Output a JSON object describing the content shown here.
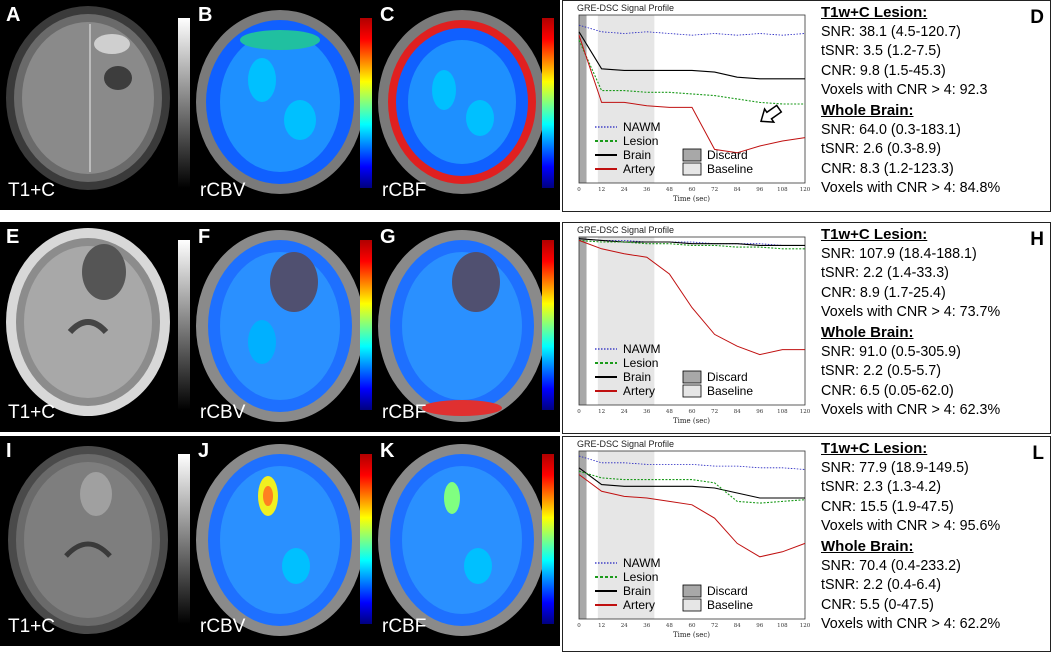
{
  "rows": [
    {
      "panels": [
        {
          "letter": "A",
          "caption": "T1+C"
        },
        {
          "letter": "B",
          "caption": "rCBV"
        },
        {
          "letter": "C",
          "caption": "rCBF"
        }
      ],
      "right_letter": "D",
      "chart_data": {
        "type": "line",
        "title": "GRE-DSC Signal Profile",
        "xlabel": "Time (sec)",
        "x_ticks": [
          "0",
          "12",
          "24",
          "36",
          "48",
          "60",
          "72",
          "84",
          "96",
          "108",
          "120"
        ],
        "xlim": [
          0,
          120
        ],
        "ylim": [
          0,
          1
        ],
        "legend": {
          "nawm": "NAWM",
          "lesion": "Lesion",
          "brain": "Brain",
          "artery": "Artery",
          "discard": "Discard",
          "baseline": "Baseline"
        },
        "colors": {
          "nawm": "#2020c0",
          "lesion": "#1a9a1a",
          "brain": "#000000",
          "artery": "#c01010"
        },
        "series": [
          {
            "name": "NAWM",
            "values": [
              0.94,
              0.9,
              0.89,
              0.9,
              0.89,
              0.88,
              0.89,
              0.88,
              0.89,
              0.88,
              0.89
            ]
          },
          {
            "name": "Brain",
            "values": [
              0.9,
              0.68,
              0.67,
              0.67,
              0.67,
              0.67,
              0.66,
              0.63,
              0.62,
              0.62,
              0.62
            ]
          },
          {
            "name": "Lesion",
            "values": [
              0.85,
              0.55,
              0.55,
              0.54,
              0.54,
              0.53,
              0.52,
              0.5,
              0.48,
              0.47,
              0.47
            ]
          },
          {
            "name": "Artery",
            "values": [
              0.88,
              0.48,
              0.48,
              0.46,
              0.45,
              0.45,
              0.2,
              0.18,
              0.22,
              0.25,
              0.27
            ]
          }
        ]
      },
      "stats": {
        "lesion_head": "T1w+C Lesion:",
        "lesion": [
          "SNR: 38.1 (4.5-120.7)",
          "tSNR: 3.5 (1.2-7.5)",
          "CNR: 9.8 (1.5-45.3)",
          "Voxels with CNR > 4: 92.3"
        ],
        "brain_head": "Whole Brain:",
        "brain": [
          "SNR: 64.0 (0.3-183.1)",
          "tSNR: 2.6 (0.3-8.9)",
          "CNR: 8.3 (1.2-123.3)",
          "Voxels with CNR > 4: 84.8%"
        ]
      }
    },
    {
      "panels": [
        {
          "letter": "E",
          "caption": "T1+C"
        },
        {
          "letter": "F",
          "caption": "rCBV"
        },
        {
          "letter": "G",
          "caption": "rCBF"
        }
      ],
      "right_letter": "H",
      "chart_data": {
        "type": "line",
        "title": "GRE-DSC Signal Profile",
        "xlabel": "Time (sec)",
        "x_ticks": [
          "0",
          "12",
          "24",
          "36",
          "48",
          "60",
          "72",
          "84",
          "96",
          "108",
          "120"
        ],
        "xlim": [
          0,
          120
        ],
        "ylim": [
          0,
          1
        ],
        "legend": {
          "nawm": "NAWM",
          "lesion": "Lesion",
          "brain": "Brain",
          "artery": "Artery",
          "discard": "Discard",
          "baseline": "Baseline"
        },
        "colors": {
          "nawm": "#2020c0",
          "lesion": "#1a9a1a",
          "brain": "#000000",
          "artery": "#c01010"
        },
        "series": [
          {
            "name": "NAWM",
            "values": [
              0.99,
              0.98,
              0.98,
              0.97,
              0.97,
              0.97,
              0.96,
              0.96,
              0.96,
              0.95,
              0.95
            ]
          },
          {
            "name": "Brain",
            "values": [
              0.99,
              0.98,
              0.97,
              0.97,
              0.97,
              0.96,
              0.96,
              0.96,
              0.95,
              0.95,
              0.95
            ]
          },
          {
            "name": "Lesion",
            "values": [
              0.98,
              0.97,
              0.97,
              0.96,
              0.96,
              0.95,
              0.95,
              0.94,
              0.94,
              0.93,
              0.93
            ]
          },
          {
            "name": "Artery",
            "values": [
              0.98,
              0.93,
              0.9,
              0.88,
              0.78,
              0.58,
              0.42,
              0.35,
              0.3,
              0.33,
              0.33
            ]
          }
        ]
      },
      "stats": {
        "lesion_head": "T1w+C Lesion:",
        "lesion": [
          "SNR: 107.9 (18.4-188.1)",
          "tSNR: 2.2 (1.4-33.3)",
          "CNR: 8.9 (1.7-25.4)",
          "Voxels with CNR > 4: 73.7%"
        ],
        "brain_head": "Whole Brain:",
        "brain": [
          "SNR: 91.0 (0.5-305.9)",
          "tSNR: 2.2 (0.5-5.7)",
          "CNR: 6.5 (0.05-62.0)",
          "Voxels with CNR > 4: 62.3%"
        ]
      }
    },
    {
      "panels": [
        {
          "letter": "I",
          "caption": "T1+C"
        },
        {
          "letter": "J",
          "caption": "rCBV"
        },
        {
          "letter": "K",
          "caption": "rCBF"
        }
      ],
      "right_letter": "L",
      "chart_data": {
        "type": "line",
        "title": "GRE-DSC Signal Profile",
        "xlabel": "Time (sec)",
        "x_ticks": [
          "0",
          "12",
          "24",
          "36",
          "48",
          "60",
          "72",
          "84",
          "96",
          "108",
          "120"
        ],
        "xlim": [
          0,
          120
        ],
        "ylim": [
          0,
          1
        ],
        "legend": {
          "nawm": "NAWM",
          "lesion": "Lesion",
          "brain": "Brain",
          "artery": "Artery",
          "discard": "Discard",
          "baseline": "Baseline"
        },
        "colors": {
          "nawm": "#2020c0",
          "lesion": "#1a9a1a",
          "brain": "#000000",
          "artery": "#c01010"
        },
        "series": [
          {
            "name": "NAWM",
            "values": [
              0.97,
              0.93,
              0.93,
              0.92,
              0.92,
              0.92,
              0.91,
              0.91,
              0.9,
              0.9,
              0.89
            ]
          },
          {
            "name": "Brain",
            "values": [
              0.9,
              0.8,
              0.79,
              0.79,
              0.79,
              0.79,
              0.78,
              0.75,
              0.72,
              0.72,
              0.72
            ]
          },
          {
            "name": "Lesion",
            "values": [
              0.88,
              0.84,
              0.83,
              0.83,
              0.83,
              0.83,
              0.81,
              0.7,
              0.69,
              0.7,
              0.71
            ]
          },
          {
            "name": "Artery",
            "values": [
              0.86,
              0.76,
              0.73,
              0.72,
              0.7,
              0.68,
              0.6,
              0.45,
              0.37,
              0.4,
              0.45
            ]
          }
        ]
      },
      "stats": {
        "lesion_head": "T1w+C Lesion:",
        "lesion": [
          "SNR: 77.9 (18.9-149.5)",
          "tSNR: 2.3 (1.3-4.2)",
          "CNR: 15.5 (1.9-47.5)",
          "Voxels with CNR > 4: 95.6%"
        ],
        "brain_head": "Whole Brain:",
        "brain": [
          "SNR: 70.4 (0.4-233.2)",
          "tSNR: 2.2 (0.4-6.4)",
          "CNR: 5.5 (0-47.5)",
          "Voxels with CNR > 4: 62.2%"
        ]
      }
    }
  ]
}
